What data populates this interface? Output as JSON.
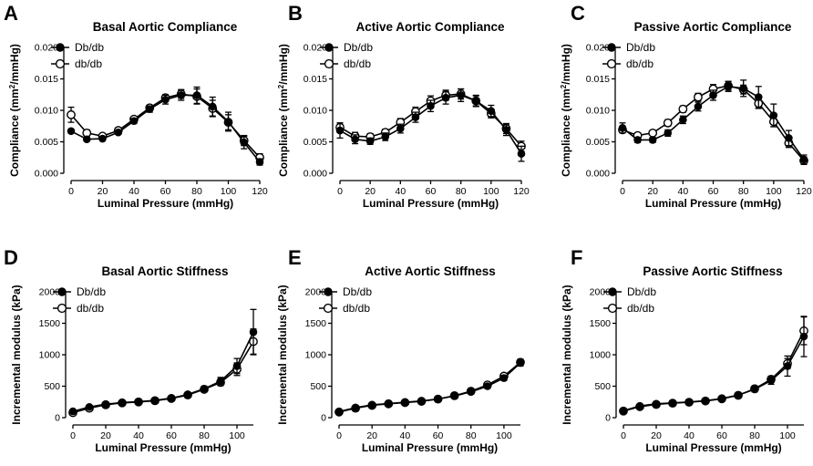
{
  "chart_data": [
    {
      "letter": "A",
      "type": "line",
      "title": "Basal Aortic Compliance",
      "xlabel": "Luminal Pressure (mmHg)",
      "ylabel": "Compliance (mm²/mmHg)",
      "xlim": [
        0,
        120
      ],
      "ylim": [
        0,
        0.02
      ],
      "xticks": [
        0,
        20,
        40,
        60,
        80,
        100,
        120
      ],
      "yticks": [
        0,
        0.005,
        0.01,
        0.015,
        0.02
      ],
      "ytick_labels": [
        "0.000",
        "0.005",
        "0.010",
        "0.015",
        "0.020"
      ],
      "x": [
        0,
        10,
        20,
        30,
        40,
        50,
        60,
        70,
        80,
        90,
        100,
        110,
        120
      ],
      "series": [
        {
          "name": "Db/db",
          "marker": "filled",
          "values": [
            0.0067,
            0.0054,
            0.0055,
            0.0065,
            0.0083,
            0.0102,
            0.0117,
            0.0124,
            0.0124,
            0.0106,
            0.0082,
            0.0049,
            0.0018
          ],
          "errors": [
            0.0003,
            0.0003,
            0.0003,
            0.0003,
            0.0004,
            0.0005,
            0.0007,
            0.0008,
            0.0013,
            0.0015,
            0.0015,
            0.001,
            0.0005
          ]
        },
        {
          "name": "db/db",
          "marker": "open",
          "values": [
            0.0093,
            0.0064,
            0.0059,
            0.0068,
            0.0086,
            0.0104,
            0.012,
            0.0126,
            0.0122,
            0.0103,
            0.0081,
            0.0052,
            0.0025
          ],
          "errors": [
            0.0012,
            0.0005,
            0.0003,
            0.0004,
            0.0004,
            0.0004,
            0.0005,
            0.0007,
            0.0012,
            0.0013,
            0.0012,
            0.0008,
            0.0006
          ]
        }
      ]
    },
    {
      "letter": "B",
      "type": "line",
      "title": "Active Aortic Compliance",
      "xlabel": "Luminal Pressure (mmHg)",
      "ylabel": "Compliance (mm²/mmHg)",
      "xlim": [
        0,
        120
      ],
      "ylim": [
        0,
        0.02
      ],
      "xticks": [
        0,
        20,
        40,
        60,
        80,
        100,
        120
      ],
      "yticks": [
        0,
        0.005,
        0.01,
        0.015,
        0.02
      ],
      "ytick_labels": [
        "0.000",
        "0.005",
        "0.010",
        "0.015",
        "0.020"
      ],
      "x": [
        0,
        10,
        20,
        30,
        40,
        50,
        60,
        70,
        80,
        90,
        100,
        110,
        120
      ],
      "series": [
        {
          "name": "Db/db",
          "marker": "filled",
          "values": [
            0.0068,
            0.0054,
            0.0051,
            0.0058,
            0.0071,
            0.0089,
            0.0107,
            0.012,
            0.0124,
            0.0115,
            0.0099,
            0.0069,
            0.0031
          ],
          "errors": [
            0.0012,
            0.0007,
            0.0005,
            0.0006,
            0.0007,
            0.0008,
            0.0009,
            0.001,
            0.001,
            0.0009,
            0.0009,
            0.0009,
            0.0012
          ]
        },
        {
          "name": "db/db",
          "marker": "open",
          "values": [
            0.0073,
            0.0059,
            0.0058,
            0.0065,
            0.0081,
            0.0098,
            0.0115,
            0.0124,
            0.0126,
            0.0115,
            0.0095,
            0.0071,
            0.0043
          ],
          "errors": [
            0.0007,
            0.0006,
            0.0005,
            0.0005,
            0.0006,
            0.0007,
            0.0008,
            0.0008,
            0.0008,
            0.0008,
            0.0007,
            0.0008,
            0.0008
          ]
        }
      ]
    },
    {
      "letter": "C",
      "type": "line",
      "title": "Passive Aortic Compliance",
      "xlabel": "Luminal Pressure (mmHg)",
      "ylabel": "Compliance (mm²/mmHg)",
      "xlim": [
        0,
        120
      ],
      "ylim": [
        0,
        0.02
      ],
      "xticks": [
        0,
        20,
        40,
        60,
        80,
        100,
        120
      ],
      "yticks": [
        0,
        0.005,
        0.01,
        0.015,
        0.02
      ],
      "ytick_labels": [
        "0.000",
        "0.005",
        "0.010",
        "0.015",
        "0.020"
      ],
      "x": [
        0,
        10,
        20,
        30,
        40,
        50,
        60,
        70,
        80,
        90,
        100,
        110,
        120
      ],
      "series": [
        {
          "name": "Db/db",
          "marker": "filled",
          "values": [
            0.0072,
            0.0053,
            0.0053,
            0.0064,
            0.0085,
            0.0106,
            0.0124,
            0.0138,
            0.0135,
            0.0121,
            0.0092,
            0.0056,
            0.0022
          ],
          "errors": [
            0.0008,
            0.0004,
            0.0004,
            0.0005,
            0.0006,
            0.0007,
            0.0008,
            0.0008,
            0.0013,
            0.0017,
            0.0018,
            0.0012,
            0.0007
          ]
        },
        {
          "name": "db/db",
          "marker": "open",
          "values": [
            0.0069,
            0.006,
            0.0064,
            0.008,
            0.0102,
            0.0121,
            0.0134,
            0.0139,
            0.0133,
            0.0111,
            0.0082,
            0.0048,
            0.002
          ],
          "errors": [
            0.0005,
            0.0004,
            0.0004,
            0.0005,
            0.0005,
            0.0006,
            0.0007,
            0.0007,
            0.0007,
            0.0008,
            0.0008,
            0.0007,
            0.0006
          ]
        }
      ]
    },
    {
      "letter": "D",
      "type": "line",
      "title": "Basal Aortic Stiffness",
      "xlabel": "Luminal Pressure (mmHg)",
      "ylabel": "Incremental modulus (kPa)",
      "xlim": [
        0,
        110
      ],
      "ylim": [
        0,
        2000
      ],
      "xticks": [
        0,
        20,
        40,
        60,
        80,
        100
      ],
      "yticks": [
        0,
        500,
        1000,
        1500,
        2000
      ],
      "ytick_labels": [
        "0",
        "500",
        "1000",
        "1500",
        "2000"
      ],
      "x": [
        0,
        10,
        20,
        30,
        40,
        50,
        60,
        70,
        80,
        90,
        100,
        110
      ],
      "series": [
        {
          "name": "Db/db",
          "marker": "filled",
          "values": [
            100,
            170,
            215,
            240,
            255,
            275,
            310,
            370,
            460,
            580,
            820,
            1360
          ],
          "errors": [
            20,
            20,
            20,
            20,
            20,
            25,
            25,
            30,
            40,
            60,
            120,
            360
          ]
        },
        {
          "name": "db/db",
          "marker": "open",
          "values": [
            80,
            150,
            205,
            235,
            250,
            270,
            305,
            360,
            450,
            560,
            770,
            1210
          ],
          "errors": [
            20,
            20,
            20,
            20,
            20,
            20,
            25,
            30,
            40,
            50,
            100,
            200
          ]
        }
      ]
    },
    {
      "letter": "E",
      "type": "line",
      "title": "Active Aortic Stiffness",
      "xlabel": "Luminal Pressure (mmHg)",
      "ylabel": "Incremental modulus (kPa)",
      "xlim": [
        0,
        110
      ],
      "ylim": [
        0,
        2000
      ],
      "xticks": [
        0,
        20,
        40,
        60,
        80,
        100
      ],
      "yticks": [
        0,
        500,
        1000,
        1500,
        2000
      ],
      "ytick_labels": [
        "0",
        "500",
        "1000",
        "1500",
        "2000"
      ],
      "x": [
        0,
        10,
        20,
        30,
        40,
        50,
        60,
        70,
        80,
        90,
        100,
        110
      ],
      "series": [
        {
          "name": "Db/db",
          "marker": "filled",
          "values": [
            95,
            160,
            205,
            225,
            245,
            265,
            295,
            345,
            410,
            500,
            630,
            870
          ],
          "errors": [
            20,
            20,
            20,
            20,
            20,
            20,
            20,
            25,
            30,
            35,
            40,
            50
          ]
        },
        {
          "name": "db/db",
          "marker": "open",
          "values": [
            90,
            150,
            195,
            220,
            240,
            260,
            295,
            350,
            420,
            520,
            660,
            880
          ],
          "errors": [
            20,
            20,
            20,
            20,
            20,
            20,
            20,
            25,
            30,
            35,
            40,
            50
          ]
        }
      ]
    },
    {
      "letter": "F",
      "type": "line",
      "title": "Passive Aortic Stiffness",
      "xlabel": "Luminal Pressure (mmHg)",
      "ylabel": "Incremental modulus (kPa)",
      "xlim": [
        0,
        110
      ],
      "ylim": [
        0,
        2000
      ],
      "xticks": [
        0,
        20,
        40,
        60,
        80,
        100
      ],
      "yticks": [
        0,
        500,
        1000,
        1500,
        2000
      ],
      "ytick_labels": [
        "0",
        "500",
        "1000",
        "1500",
        "2000"
      ],
      "x": [
        0,
        10,
        20,
        30,
        40,
        50,
        60,
        70,
        80,
        90,
        100,
        110
      ],
      "series": [
        {
          "name": "Db/db",
          "marker": "filled",
          "values": [
            110,
            185,
            220,
            235,
            250,
            270,
            305,
            360,
            450,
            590,
            820,
            1290
          ],
          "errors": [
            20,
            20,
            20,
            20,
            20,
            20,
            25,
            30,
            40,
            60,
            160,
            320
          ]
        },
        {
          "name": "db/db",
          "marker": "open",
          "values": [
            105,
            175,
            210,
            230,
            245,
            265,
            300,
            355,
            460,
            610,
            860,
            1380
          ],
          "errors": [
            20,
            20,
            20,
            20,
            20,
            20,
            25,
            30,
            40,
            50,
            80,
            220
          ]
        }
      ]
    }
  ]
}
